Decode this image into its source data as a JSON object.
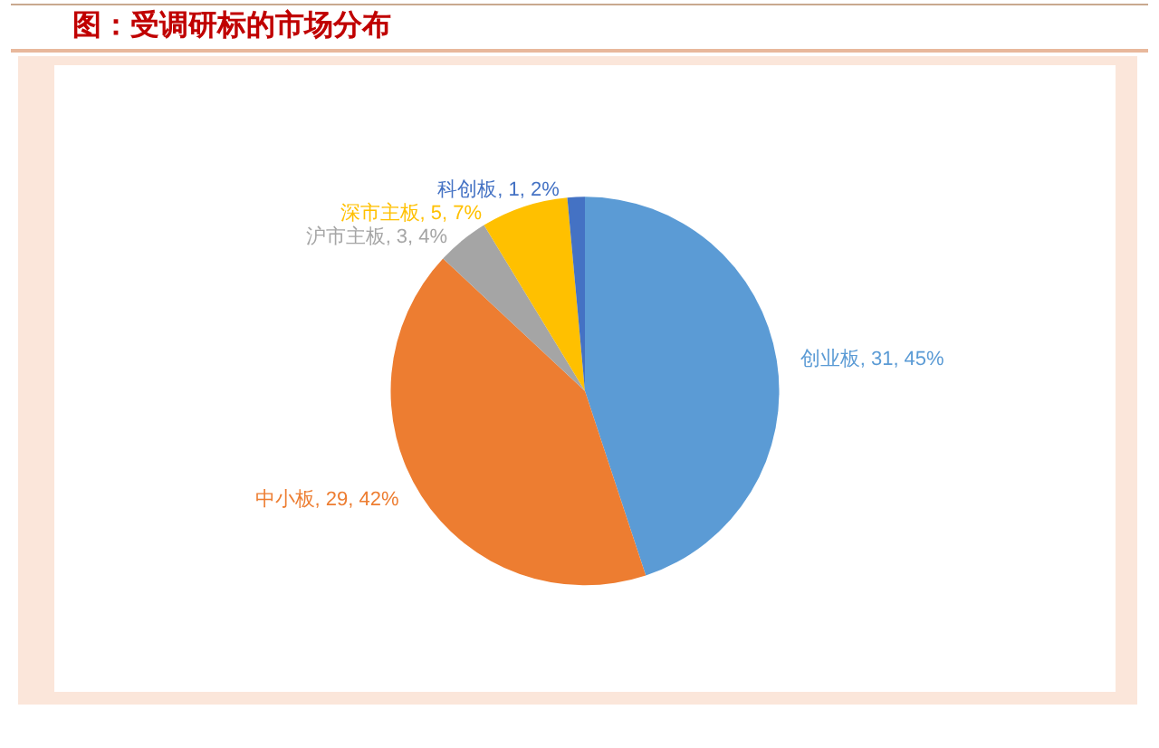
{
  "chart_data": {
    "type": "pie",
    "title": "图：受调研标的市场分布",
    "categories": [
      "创业板",
      "中小板",
      "沪市主板",
      "深市主板",
      "科创板"
    ],
    "values": [
      31,
      29,
      3,
      5,
      1
    ],
    "value_labels": [
      "31, 45%",
      "29, 42%",
      "3, 4%",
      "5, 7%",
      "1, 2%"
    ],
    "colors": [
      "#5b9bd5",
      "#ed7d31",
      "#a5a5a5",
      "#ffc000",
      "#4472c4"
    ],
    "legend": false
  }
}
